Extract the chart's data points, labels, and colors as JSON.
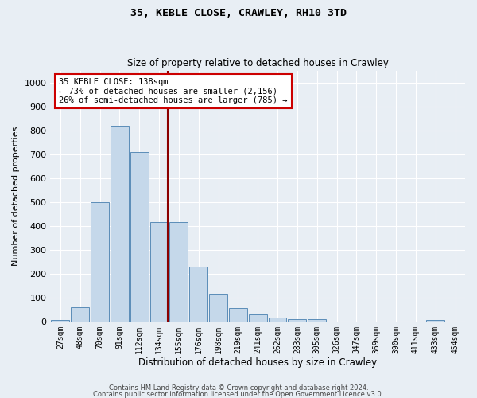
{
  "title1": "35, KEBLE CLOSE, CRAWLEY, RH10 3TD",
  "title2": "Size of property relative to detached houses in Crawley",
  "xlabel": "Distribution of detached houses by size in Crawley",
  "ylabel": "Number of detached properties",
  "bar_labels": [
    "27sqm",
    "48sqm",
    "70sqm",
    "91sqm",
    "112sqm",
    "134sqm",
    "155sqm",
    "176sqm",
    "198sqm",
    "219sqm",
    "241sqm",
    "262sqm",
    "283sqm",
    "305sqm",
    "326sqm",
    "347sqm",
    "369sqm",
    "390sqm",
    "411sqm",
    "433sqm",
    "454sqm"
  ],
  "bar_values": [
    5,
    60,
    500,
    820,
    710,
    415,
    415,
    230,
    115,
    55,
    30,
    15,
    10,
    10,
    0,
    0,
    0,
    0,
    0,
    5,
    0
  ],
  "bar_color": "#c5d8ea",
  "bar_edgecolor": "#5b8db8",
  "vline_color": "#8b0000",
  "vline_x_index": 5,
  "annotation_text": "35 KEBLE CLOSE: 138sqm\n← 73% of detached houses are smaller (2,156)\n26% of semi-detached houses are larger (785) →",
  "annotation_box_color": "white",
  "annotation_box_edgecolor": "#cc0000",
  "ylim": [
    0,
    1050
  ],
  "yticks": [
    0,
    100,
    200,
    300,
    400,
    500,
    600,
    700,
    800,
    900,
    1000
  ],
  "footer1": "Contains HM Land Registry data © Crown copyright and database right 2024.",
  "footer2": "Contains public sector information licensed under the Open Government Licence v3.0.",
  "bg_color": "#e8eef4",
  "plot_bg_color": "#e8eef4"
}
